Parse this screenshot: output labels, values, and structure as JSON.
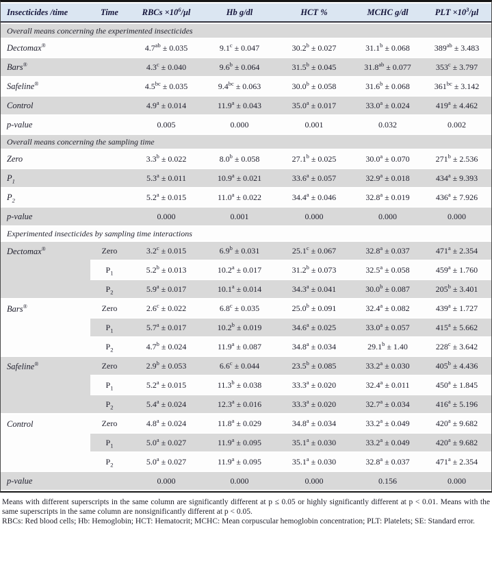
{
  "colors": {
    "header_bg": "#dbe6f2",
    "stripe_gray": "#d9d9d9",
    "row_white": "#fdfdfd"
  },
  "header": {
    "columns": [
      {
        "pre": "Insecticides /time"
      },
      {
        "pre": "Time"
      },
      {
        "pre": "RBCs ×10",
        "sup": "6",
        "post": "/μl"
      },
      {
        "pre": "Hb g/dl"
      },
      {
        "pre": "HCT %"
      },
      {
        "pre": "MCHC g/dl"
      },
      {
        "pre": "PLT ×10",
        "sup": "3",
        "post": "/μl"
      }
    ]
  },
  "sections": [
    {
      "title": "Overall means concerning the experimented insecticides",
      "rows": [
        {
          "label": {
            "text": "Dectomax",
            "reg": true
          },
          "cells": [
            {
              "m": "4.7",
              "sup": "ab",
              "se": "0.035"
            },
            {
              "m": "9.1",
              "sup": "c",
              "se": "0.047"
            },
            {
              "m": "30.2",
              "sup": "b",
              "se": "0.027"
            },
            {
              "m": "31.1",
              "sup": "b",
              "se": "0.068"
            },
            {
              "m": "389",
              "sup": "ab",
              "se": "3.483"
            }
          ]
        },
        {
          "label": {
            "text": "Bars",
            "reg": true
          },
          "cells": [
            {
              "m": "4.3",
              "sup": "c",
              "se": "0.040"
            },
            {
              "m": "9.6",
              "sup": "b",
              "se": "0.064"
            },
            {
              "m": "31.5",
              "sup": "b",
              "se": "0.045"
            },
            {
              "m": "31.8",
              "sup": "ab",
              "se": "0.077"
            },
            {
              "m": "353",
              "sup": "c",
              "se": "3.797"
            }
          ]
        },
        {
          "label": {
            "text": "Safeline",
            "reg": true
          },
          "cells": [
            {
              "m": "4.5",
              "sup": "bc",
              "se": "0.035"
            },
            {
              "m": "9.4",
              "sup": "bc",
              "se": "0.063"
            },
            {
              "m": "30.0",
              "sup": "b",
              "se": "0.058"
            },
            {
              "m": "31.6",
              "sup": "b",
              "se": "0.068"
            },
            {
              "m": "361",
              "sup": "bc",
              "se": "3.142"
            }
          ]
        },
        {
          "label": {
            "text": "Control"
          },
          "cells": [
            {
              "m": "4.9",
              "sup": "a",
              "se": "0.014"
            },
            {
              "m": "11.9",
              "sup": "a",
              "se": "0.043"
            },
            {
              "m": "35.0",
              "sup": "a",
              "se": "0.017"
            },
            {
              "m": "33.0",
              "sup": "a",
              "se": "0.024"
            },
            {
              "m": "419",
              "sup": "a",
              "se": "4.462"
            }
          ]
        },
        {
          "label": {
            "text": "p-value"
          },
          "cells": [
            "0.005",
            "0.000",
            "0.001",
            "0.032",
            "0.002"
          ]
        }
      ]
    },
    {
      "title": "Overall means concerning the sampling time",
      "rows": [
        {
          "label": {
            "text": "Zero"
          },
          "cells": [
            {
              "m": "3.3",
              "sup": "b",
              "se": "0.022"
            },
            {
              "m": "8.0",
              "sup": "b",
              "se": "0.058"
            },
            {
              "m": "27.1",
              "sup": "b",
              "se": "0.025"
            },
            {
              "m": "30.0",
              "sup": "a",
              "se": "0.070"
            },
            {
              "m": "271",
              "sup": "b",
              "se": "2.536"
            }
          ]
        },
        {
          "label": {
            "pre": "P",
            "sub": "1"
          },
          "cells": [
            {
              "m": "5.3",
              "sup": "a",
              "se": "0.011"
            },
            {
              "m": "10.9",
              "sup": "a",
              "se": "0.021"
            },
            {
              "m": "33.6",
              "sup": "a",
              "se": "0.057"
            },
            {
              "m": "32.9",
              "sup": "a",
              "se": "0.018"
            },
            {
              "m": "434",
              "sup": "a",
              "se": "9.393"
            }
          ]
        },
        {
          "label": {
            "pre": "P",
            "sub": "2"
          },
          "cells": [
            {
              "m": "5.2",
              "sup": "a",
              "se": "0.015"
            },
            {
              "m": "11.0",
              "sup": "a",
              "se": "0.022"
            },
            {
              "m": "34.4",
              "sup": "a",
              "se": "0.046"
            },
            {
              "m": "32.8",
              "sup": "a",
              "se": "0.019"
            },
            {
              "m": "436",
              "sup": "a",
              "se": "7.926"
            }
          ]
        },
        {
          "label": {
            "text": "p-value"
          },
          "cells": [
            "0.000",
            "0.001",
            "0.000",
            "0.000",
            "0.000"
          ]
        }
      ]
    },
    {
      "title": "Experimented insecticides by sampling time interactions",
      "groups": [
        {
          "label": {
            "text": "Dectomax",
            "reg": true
          },
          "rows": [
            {
              "time": {
                "text": "Zero"
              },
              "cells": [
                {
                  "m": "3.2",
                  "sup": "c",
                  "se": "0.015"
                },
                {
                  "m": "6.9",
                  "sup": "b",
                  "se": "0.031"
                },
                {
                  "m": "25.1",
                  "sup": "c",
                  "se": "0.067"
                },
                {
                  "m": "32.8",
                  "sup": "a",
                  "se": "0.037"
                },
                {
                  "m": "471",
                  "sup": "a",
                  "se": "2.354"
                }
              ]
            },
            {
              "time": {
                "pre": "P",
                "sub": "1"
              },
              "cells": [
                {
                  "m": "5.2",
                  "sup": "b",
                  "se": "0.013"
                },
                {
                  "m": "10.2",
                  "sup": "a",
                  "se": "0.017"
                },
                {
                  "m": "31.2",
                  "sup": "b",
                  "se": "0.073"
                },
                {
                  "m": "32.5",
                  "sup": "a",
                  "se": "0.058"
                },
                {
                  "m": "459",
                  "sup": "a",
                  "se": "1.760"
                }
              ]
            },
            {
              "time": {
                "pre": "P",
                "sub": "2"
              },
              "cells": [
                {
                  "m": "5.9",
                  "sup": "a",
                  "se": "0.017"
                },
                {
                  "m": "10.1",
                  "sup": "a",
                  "se": "0.014"
                },
                {
                  "m": "34.3",
                  "sup": "a",
                  "se": "0.041"
                },
                {
                  "m": "30.0",
                  "sup": "b",
                  "se": "0.087"
                },
                {
                  "m": "205",
                  "sup": "b",
                  "se": "3.401"
                }
              ]
            }
          ]
        },
        {
          "label": {
            "text": "Bars",
            "reg": true
          },
          "rows": [
            {
              "time": {
                "text": "Zero"
              },
              "cells": [
                {
                  "m": "2.6",
                  "sup": "c",
                  "se": "0.022"
                },
                {
                  "m": "6.8",
                  "sup": "c",
                  "se": "0.035"
                },
                {
                  "m": "25.0",
                  "sup": "b",
                  "se": "0.091"
                },
                {
                  "m": "32.4",
                  "sup": "a",
                  "se": "0.082"
                },
                {
                  "m": "439",
                  "sup": "a",
                  "se": "1.727"
                }
              ]
            },
            {
              "time": {
                "pre": "P",
                "sub": "1"
              },
              "cells": [
                {
                  "m": "5.7",
                  "sup": "a",
                  "se": "0.017"
                },
                {
                  "m": "10.2",
                  "sup": "b",
                  "se": "0.019"
                },
                {
                  "m": "34.6",
                  "sup": "a",
                  "se": "0.025"
                },
                {
                  "m": "33.0",
                  "sup": "a",
                  "se": "0.057"
                },
                {
                  "m": "415",
                  "sup": "a",
                  "se": "5.662"
                }
              ]
            },
            {
              "time": {
                "pre": "P",
                "sub": "2"
              },
              "cells": [
                {
                  "m": "4.7",
                  "sup": "b",
                  "se": "0.024"
                },
                {
                  "m": "11.9",
                  "sup": "a",
                  "se": "0.087"
                },
                {
                  "m": "34.8",
                  "sup": "a",
                  "se": "0.034"
                },
                {
                  "m": "29.1",
                  "sup": "b",
                  "se": "1.40"
                },
                {
                  "m": "228",
                  "sup": "c",
                  "se": "3.642"
                }
              ]
            }
          ]
        },
        {
          "label": {
            "text": "Safeline",
            "reg": true
          },
          "rows": [
            {
              "time": {
                "text": "Zero"
              },
              "cells": [
                {
                  "m": "2.9",
                  "sup": "b",
                  "se": "0.053"
                },
                {
                  "m": "6.6",
                  "sup": "c",
                  "se": "0.044"
                },
                {
                  "m": "23.5",
                  "sup": "b",
                  "se": "0.085"
                },
                {
                  "m": "33.2",
                  "sup": "a",
                  "se": "0.030"
                },
                {
                  "m": "405",
                  "sup": "b",
                  "se": "4.436"
                }
              ]
            },
            {
              "time": {
                "pre": "P",
                "sub": "1"
              },
              "cells": [
                {
                  "m": "5.2",
                  "sup": "a",
                  "se": "0.015"
                },
                {
                  "m": "11.3",
                  "sup": "b",
                  "se": "0.038"
                },
                {
                  "m": "33.3",
                  "sup": "a",
                  "se": "0.020"
                },
                {
                  "m": "32.4",
                  "sup": "a",
                  "se": "0.011"
                },
                {
                  "m": "450",
                  "sup": "a",
                  "se": "1.845"
                }
              ]
            },
            {
              "time": {
                "pre": "P",
                "sub": "2"
              },
              "cells": [
                {
                  "m": "5.4",
                  "sup": "a",
                  "se": "0.024"
                },
                {
                  "m": "12.3",
                  "sup": "a",
                  "se": "0.016"
                },
                {
                  "m": "33.3",
                  "sup": "a",
                  "se": "0.020"
                },
                {
                  "m": "32.7",
                  "sup": "a",
                  "se": "0.034"
                },
                {
                  "m": "416",
                  "sup": "a",
                  "se": "5.196"
                }
              ]
            }
          ]
        },
        {
          "label": {
            "text": "Control"
          },
          "rows": [
            {
              "time": {
                "text": "Zero"
              },
              "cells": [
                {
                  "m": "4.8",
                  "sup": "a",
                  "se": "0.024"
                },
                {
                  "m": "11.8",
                  "sup": "a",
                  "se": "0.029"
                },
                {
                  "m": "34.8",
                  "sup": "a",
                  "se": "0.034"
                },
                {
                  "m": "33.2",
                  "sup": "a",
                  "se": "0.049"
                },
                {
                  "m": "420",
                  "sup": "a",
                  "se": "9.682"
                }
              ]
            },
            {
              "time": {
                "pre": "P",
                "sub": "1"
              },
              "cells": [
                {
                  "m": "5.0",
                  "sup": "a",
                  "se": "0.027"
                },
                {
                  "m": "11.9",
                  "sup": "a",
                  "se": "0.095"
                },
                {
                  "m": "35.1",
                  "sup": "a",
                  "se": "0.030"
                },
                {
                  "m": "33.2",
                  "sup": "a",
                  "se": "0.049"
                },
                {
                  "m": "420",
                  "sup": "a",
                  "se": "9.682"
                }
              ]
            },
            {
              "time": {
                "pre": "P",
                "sub": "2"
              },
              "cells": [
                {
                  "m": "5.0",
                  "sup": "a",
                  "se": "0.027"
                },
                {
                  "m": "11.9",
                  "sup": "a",
                  "se": "0.095"
                },
                {
                  "m": "35.1",
                  "sup": "a",
                  "se": "0.030"
                },
                {
                  "m": "32.8",
                  "sup": "a",
                  "se": "0.037"
                },
                {
                  "m": "471",
                  "sup": "a",
                  "se": "2.354"
                }
              ]
            }
          ]
        }
      ],
      "pvalue_row": {
        "label": {
          "text": "p-value"
        },
        "cells": [
          "0.000",
          "0.000",
          "0.000",
          "0.156",
          "0.000"
        ]
      }
    }
  ],
  "footnotes": [
    "Means with different superscripts in the same column are significantly different at p ≤ 0.05 or highly significantly different at p < 0.01. Means with the same superscripts in the same column are nonsignificantly different at p < 0.05.",
    "RBCs: Red blood cells; Hb: Hemoglobin; HCT: Hematocrit; MCHC: Mean corpuscular hemoglobin concentration; PLT: Platelets; SE: Standard error."
  ]
}
